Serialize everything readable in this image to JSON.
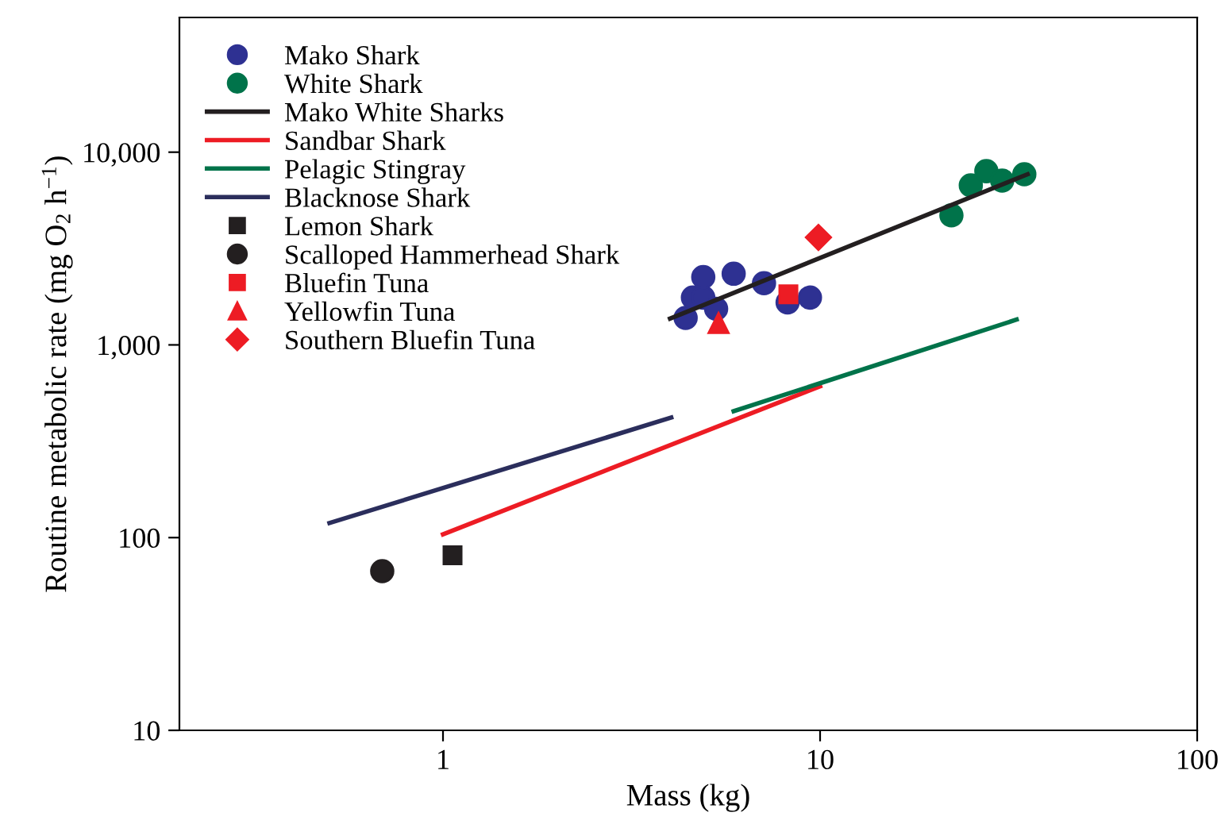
{
  "chart_data": {
    "type": "scatter",
    "xlabel": "Mass (kg)",
    "ylabel": "Routine metabolic rate (mg O$_{2}$ h$^{−1}$)",
    "log": "xy",
    "xlim": [
      0.2,
      100
    ],
    "ylim": [
      10,
      50000
    ],
    "xticks": [
      1,
      10,
      100
    ],
    "yticks": [
      10,
      100,
      {
        "value": 1000,
        "label": "1,000"
      },
      {
        "value": 10000,
        "label": "10,000"
      }
    ],
    "grid": false,
    "legend": "top left",
    "series": [
      {
        "name": "Mako Shark",
        "marker": "circle",
        "color": "#2e3192",
        "x": [
          4.4,
          4.6,
          4.9,
          4.9,
          5.3,
          5.9,
          7.1,
          8.2,
          9.4
        ],
        "values": [
          1380,
          1760,
          1760,
          2250,
          1540,
          2340,
          2090,
          1660,
          1760
        ]
      },
      {
        "name": "White Shark",
        "marker": "circle",
        "color": "#00734a",
        "x": [
          22.3,
          25.1,
          27.6,
          30.4,
          34.8
        ],
        "values": [
          4700,
          6730,
          7970,
          7120,
          7680
        ]
      },
      {
        "name": "Mako White Sharks",
        "type": "line",
        "line_style": "solid",
        "color": "#231f20",
        "x": [
          4,
          35.5
        ],
        "values": [
          1370,
          7680
        ]
      },
      {
        "name": "Sandbar Shark",
        "type": "line",
        "line_style": "solid",
        "color": "#ed1c24",
        "x": [
          1,
          10
        ],
        "values": [
          104,
          610
        ]
      },
      {
        "name": "Pelagic Stingray",
        "type": "line",
        "line_style": "solid",
        "color": "#00734a",
        "x": [
          5.9,
          33.2
        ],
        "values": [
          453,
          1353
        ]
      },
      {
        "name": "Blacknose Shark",
        "type": "line",
        "line_style": "solid",
        "color": "#2b2e5c",
        "x": [
          0.5,
          4.03
        ],
        "values": [
          119,
          420
        ]
      },
      {
        "name": "Lemon Shark",
        "marker": "square",
        "color": "#231f20",
        "x": [
          1.06
        ],
        "values": [
          81
        ]
      },
      {
        "name": "Scalloped Hammerhead Shark",
        "marker": "circle",
        "color": "#231f20",
        "x": [
          0.69
        ],
        "values": [
          67
        ]
      },
      {
        "name": "Bluefin Tuna",
        "marker": "square",
        "color": "#ed1c24",
        "x": [
          8.24
        ],
        "values": [
          1830
        ]
      },
      {
        "name": "Yellowfin Tuna",
        "marker": "triangle",
        "color": "#ed1c24",
        "x": [
          5.38
        ],
        "values": [
          1300
        ]
      },
      {
        "name": "Southern Bluefin Tuna",
        "marker": "diamond",
        "color": "#ed1c24",
        "x": [
          9.9
        ],
        "values": [
          3610
        ]
      }
    ]
  }
}
